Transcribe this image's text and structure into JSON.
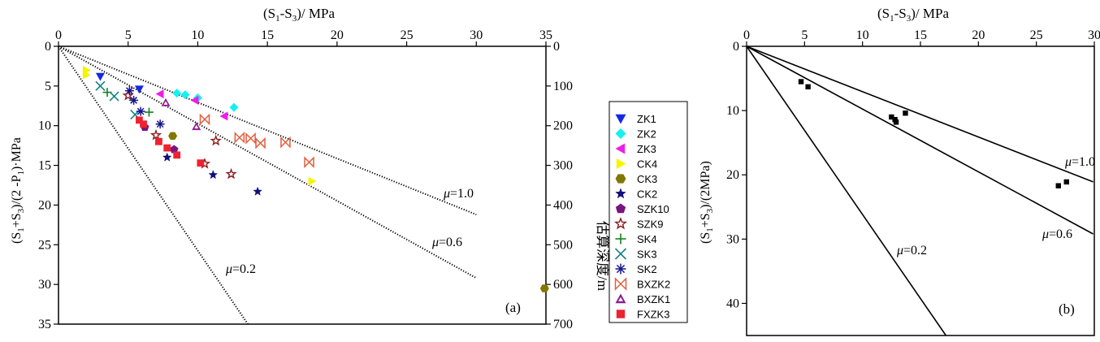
{
  "chart_data": [
    {
      "panel": "(a)",
      "type": "scatter",
      "xlabel_pre": "(S",
      "xlabel_sub1": "1",
      "xlabel_mid": "-S",
      "xlabel_sub3": "3",
      "xlabel_post": ")/ MPa",
      "ylabel_text": "(S1+S3)/(2 -P1)·MPa",
      "y2label": "估算深度/m",
      "xlim": [
        0,
        35
      ],
      "ylim": [
        0,
        35
      ],
      "y2lim": [
        0,
        700
      ],
      "xticks": [
        0,
        5,
        10,
        15,
        20,
        25,
        30,
        35
      ],
      "yticks": [
        0,
        5,
        10,
        15,
        20,
        25,
        30,
        35
      ],
      "y2ticks": [
        0,
        100,
        200,
        300,
        400,
        500,
        600,
        700
      ],
      "lines": [
        {
          "name": "μ=1.0",
          "label": "μ=1.0",
          "points": [
            [
              0,
              0
            ],
            [
              30,
              21.2
            ]
          ]
        },
        {
          "name": "μ=0.6",
          "label": "μ=0.6",
          "points": [
            [
              0,
              0
            ],
            [
              30,
              29.2
            ]
          ]
        },
        {
          "name": "μ=0.2",
          "label": "μ=0.2",
          "points": [
            [
              0,
              0
            ],
            [
              13.6,
              35
            ]
          ]
        }
      ],
      "series": [
        {
          "name": "ZK1",
          "marker": "tri-down",
          "color": "#1428e6",
          "points": [
            [
              3,
              3.8
            ],
            [
              5.8,
              5.4
            ]
          ]
        },
        {
          "name": "ZK2",
          "marker": "diamond",
          "color": "#13f1f1",
          "points": [
            [
              8.5,
              5.9
            ],
            [
              9.1,
              6.1
            ],
            [
              10,
              6.5
            ],
            [
              12.6,
              7.7
            ]
          ]
        },
        {
          "name": "ZK3",
          "marker": "tri-left",
          "color": "#ee1ee8",
          "points": [
            [
              7.3,
              6
            ],
            [
              9.8,
              6.8
            ],
            [
              11.9,
              8.8
            ]
          ]
        },
        {
          "name": "CK4",
          "marker": "tri-right",
          "color": "#f5f500",
          "points": [
            [
              2,
              3
            ],
            [
              2,
              3.6
            ],
            [
              18.2,
              17
            ]
          ]
        },
        {
          "name": "CK3",
          "marker": "hexagon",
          "color": "#807800",
          "points": [
            [
              8.2,
              11.3
            ],
            [
              34.9,
              30.5
            ]
          ]
        },
        {
          "name": "CK2",
          "marker": "star",
          "color": "#10107a",
          "points": [
            [
              7.8,
              14
            ],
            [
              11.1,
              16.2
            ],
            [
              14.3,
              18.3
            ]
          ]
        },
        {
          "name": "SZK10",
          "marker": "pentagon",
          "color": "#7a1480",
          "points": [
            [
              6.2,
              10.2
            ],
            [
              8.3,
              13
            ]
          ]
        },
        {
          "name": "SZK9",
          "marker": "star-open",
          "color": "#8c1c1c",
          "points": [
            [
              5,
              6.2
            ],
            [
              7,
              11.2
            ],
            [
              11.3,
              11.9
            ],
            [
              10.5,
              14.8
            ],
            [
              12.4,
              16.1
            ]
          ]
        },
        {
          "name": "SK4",
          "marker": "plus",
          "color": "#16801e",
          "points": [
            [
              3.5,
              5.8
            ],
            [
              6.5,
              8.3
            ]
          ]
        },
        {
          "name": "SK3",
          "marker": "x",
          "color": "#138080",
          "points": [
            [
              3,
              5
            ],
            [
              4,
              6.3
            ],
            [
              5.5,
              8.6
            ]
          ]
        },
        {
          "name": "SK2",
          "marker": "asterisk",
          "color": "#14148c",
          "points": [
            [
              5.1,
              5.6
            ],
            [
              5.4,
              6.8
            ],
            [
              5.9,
              8.2
            ],
            [
              7.3,
              9.8
            ]
          ]
        },
        {
          "name": "BXZK2",
          "marker": "bowtie",
          "color": "#e15f3f",
          "points": [
            [
              10.5,
              9.2
            ],
            [
              13,
              11.5
            ],
            [
              13.8,
              11.6
            ],
            [
              14.5,
              12.2
            ],
            [
              16.3,
              12.1
            ],
            [
              18,
              14.6
            ]
          ]
        },
        {
          "name": "BXZK1",
          "marker": "tri-up-open",
          "color": "#8e1e8e",
          "points": [
            [
              7.7,
              7.1
            ],
            [
              9.9,
              10.1
            ]
          ]
        },
        {
          "name": "FXZK3",
          "marker": "square",
          "color": "#ee2230",
          "points": [
            [
              5.8,
              9.3
            ],
            [
              6.1,
              9.8
            ],
            [
              7.2,
              12
            ],
            [
              7.8,
              12.8
            ],
            [
              8.5,
              13.7
            ],
            [
              10.2,
              14.7
            ]
          ]
        }
      ]
    },
    {
      "panel": "(b)",
      "type": "scatter",
      "xlabel_pre": "(S",
      "xlabel_sub1": "1",
      "xlabel_mid": "-S",
      "xlabel_sub3": "3",
      "xlabel_post": ")/ MPa",
      "ylabel_text": "(S1+S3)/(2MPa)",
      "xlim": [
        0,
        30
      ],
      "ylim": [
        0,
        45
      ],
      "xticks": [
        0,
        5,
        10,
        15,
        20,
        25,
        30
      ],
      "yticks": [
        0,
        10,
        20,
        30,
        40
      ],
      "lines": [
        {
          "name": "μ=1.0",
          "label": "μ=1.0",
          "points": [
            [
              0,
              0
            ],
            [
              29.9,
              21.1
            ]
          ]
        },
        {
          "name": "μ=0.6",
          "label": "μ=0.6",
          "points": [
            [
              0,
              0
            ],
            [
              29.9,
              29.2
            ]
          ]
        },
        {
          "name": "μ=0.2",
          "label": "μ=0.2",
          "points": [
            [
              0,
              0
            ],
            [
              17.2,
              45
            ]
          ]
        }
      ],
      "series": [
        {
          "name": "data",
          "marker": "square",
          "color": "#000000",
          "points": [
            [
              4.7,
              5.5
            ],
            [
              5.3,
              6.3
            ],
            [
              12.5,
              11
            ],
            [
              12.8,
              11.4
            ],
            [
              12.9,
              11.8
            ],
            [
              13.7,
              10.4
            ],
            [
              26.9,
              21.7
            ],
            [
              27.6,
              21.1
            ]
          ]
        }
      ]
    }
  ],
  "legend_labels": [
    "ZK1",
    "ZK2",
    "ZK3",
    "CK4",
    "CK3",
    "CK2",
    "SZK10",
    "SZK9",
    "SK4",
    "SK3",
    "SK2",
    "BXZK2",
    "BXZK1",
    "FXZK3"
  ],
  "panel_labels": {
    "a": "(a)",
    "b": "(b)"
  },
  "mu_labels": {
    "mu": "μ",
    "v10": "=1.0",
    "v06": "=0.6",
    "v02": "=0.2"
  },
  "ylabel_a_parts": {
    "p1": "(S",
    "s1": "1",
    "p2": "+S",
    "s3": "3",
    "p3": ")/(2 -P",
    "sp": "1",
    "p4": ")·MPa"
  },
  "ylabel_b_parts": {
    "p1": "(S",
    "s1": "1",
    "p2": "+S",
    "s3": "3",
    "p3": ")/(2MPa)"
  }
}
